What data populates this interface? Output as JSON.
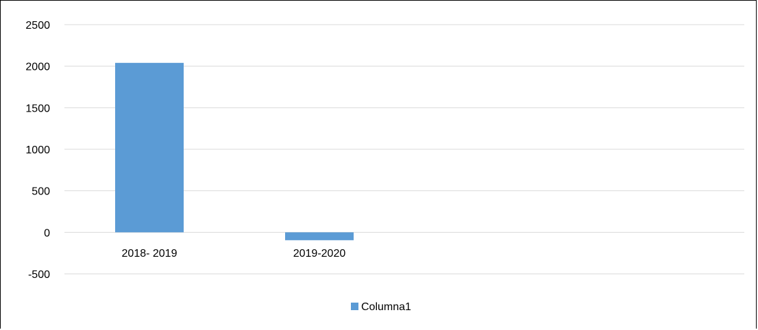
{
  "chart_data": {
    "type": "bar",
    "title": "",
    "xlabel": "",
    "ylabel": "",
    "categories": [
      "2018- 2019",
      "2019-2020"
    ],
    "series": [
      {
        "name": "Columna1",
        "values": [
          2040,
          -95
        ],
        "color": "#5b9bd5"
      }
    ],
    "ylim": [
      -500,
      2500
    ],
    "yticks": [
      2500,
      2000,
      1500,
      1000,
      500,
      0,
      -500
    ],
    "grid": true,
    "grid_color": "#d9d9d9",
    "legend_position": "bottom-center"
  }
}
